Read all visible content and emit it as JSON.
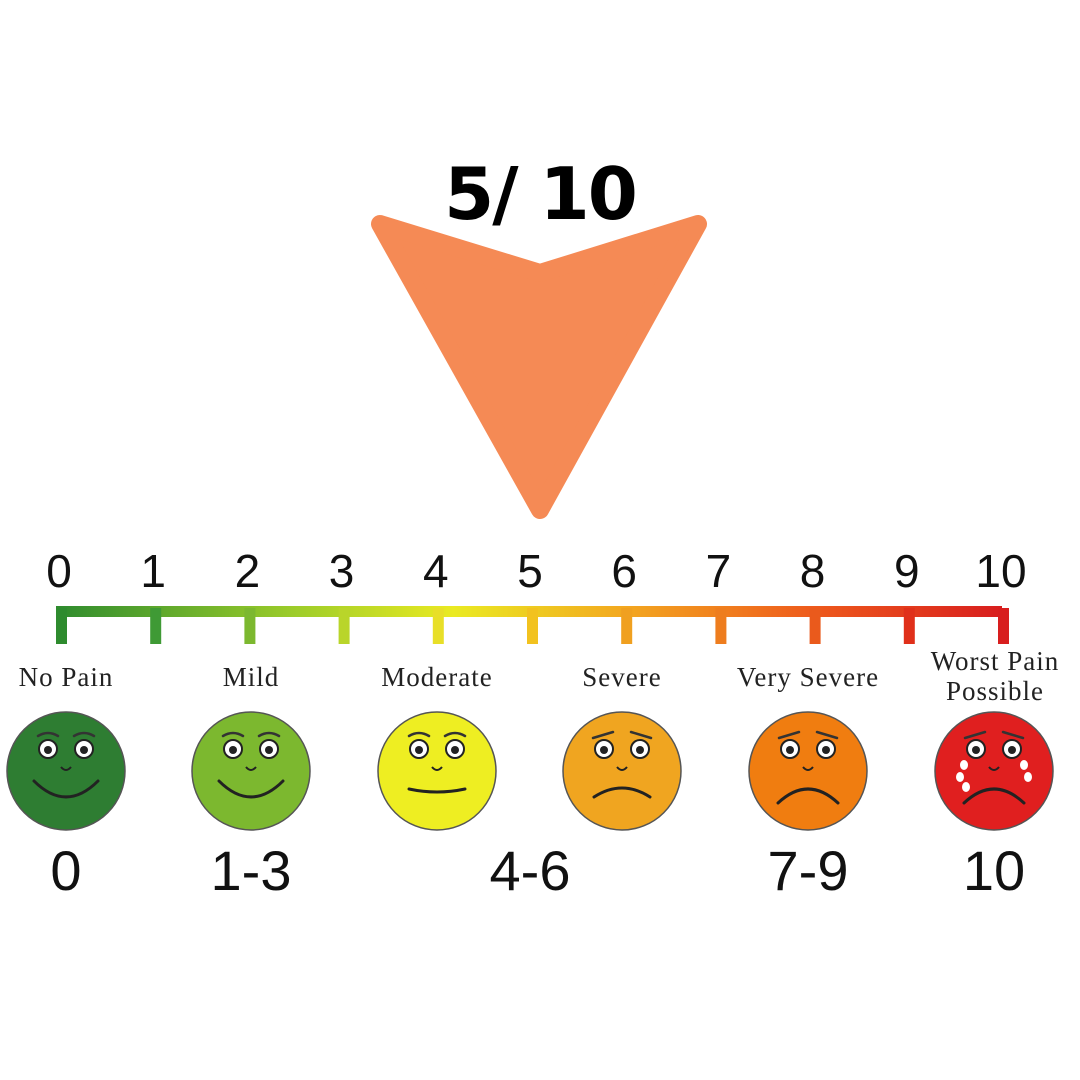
{
  "rating": {
    "value": 5,
    "max": 10,
    "text": "5/ 10"
  },
  "pointer_color": "#f58a55",
  "scale": {
    "ticks": [
      "0",
      "1",
      "2",
      "3",
      "4",
      "5",
      "6",
      "7",
      "8",
      "9",
      "10"
    ],
    "tick_colors": [
      "#2e8b2e",
      "#3f9a35",
      "#7cb82f",
      "#b9d52a",
      "#e8df28",
      "#f2c21f",
      "#f0a020",
      "#ee7d1e",
      "#ea5a1c",
      "#e0301a",
      "#d81e1e"
    ]
  },
  "levels": [
    {
      "label": "No Pain",
      "color": "#2e7d32",
      "mood": "happy"
    },
    {
      "label": "Mild",
      "color": "#7cb82f",
      "mood": "happy"
    },
    {
      "label": "Moderate",
      "color": "#eeee22",
      "mood": "neutral"
    },
    {
      "label": "Severe",
      "color": "#f0a520",
      "mood": "sad"
    },
    {
      "label": "Very Severe",
      "color": "#f07d10",
      "mood": "very-sad"
    },
    {
      "label": "Worst Pain",
      "label2": "Possible",
      "color": "#e01f1f",
      "mood": "crying"
    }
  ],
  "ranges": [
    "0",
    "1-3",
    "4-6",
    "7-9",
    "10"
  ]
}
